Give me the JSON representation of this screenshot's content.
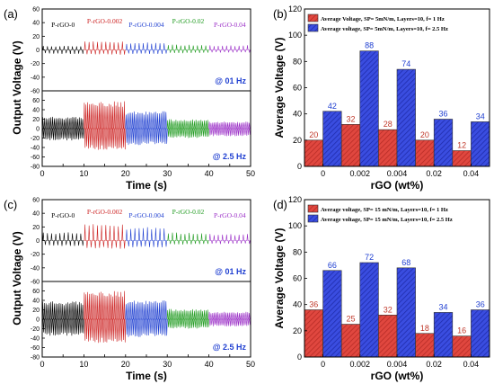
{
  "chart_data": [
    {
      "panel": "(a)",
      "type": "line",
      "xlabel": "Time (s)",
      "ylabel": "Output Voltage  (V)",
      "xlim": [
        0,
        50
      ],
      "xticks": [
        "0",
        "5",
        "10",
        "15",
        "20",
        "25",
        "30",
        "35",
        "40",
        "45",
        "50"
      ],
      "top": {
        "ylim": [
          -60,
          60
        ],
        "yticks": [
          "-60",
          "-40",
          "-20",
          "0",
          "20",
          "40",
          "60"
        ],
        "annotation": "@ 01 Hz",
        "series": [
          {
            "name": "P-rGO-0",
            "x": [
              0,
              10
            ],
            "amp_pos": 6,
            "amp_neg": -6,
            "color": "#000000"
          },
          {
            "name": "P-rGO-0.002",
            "x": [
              10,
              20
            ],
            "amp_pos": 13,
            "amp_neg": -7,
            "color": "#cc2222"
          },
          {
            "name": "P-rGO-0.004",
            "x": [
              20,
              30
            ],
            "amp_pos": 11,
            "amp_neg": -6,
            "color": "#1f3fd1"
          },
          {
            "name": "P-rGO-0.02",
            "x": [
              30,
              40
            ],
            "amp_pos": 8,
            "amp_neg": -5,
            "color": "#1e9a1e"
          },
          {
            "name": "P-rGO-0.04",
            "x": [
              40,
              50
            ],
            "amp_pos": 7,
            "amp_neg": -4,
            "color": "#9b2fc7"
          }
        ]
      },
      "bottom": {
        "ylim": [
          -80,
          80
        ],
        "yticks": [
          "-80",
          "-60",
          "-40",
          "-20",
          "0",
          "20",
          "40",
          "60"
        ],
        "annotation": "@ 2.5 Hz",
        "series": [
          {
            "x": [
              0,
              10
            ],
            "amp_pos": 25,
            "amp_neg": -25,
            "color": "#000000"
          },
          {
            "x": [
              10,
              20
            ],
            "amp_pos": 58,
            "amp_neg": -45,
            "color": "#cc2222"
          },
          {
            "x": [
              20,
              30
            ],
            "amp_pos": 37,
            "amp_neg": -35,
            "color": "#1f3fd1"
          },
          {
            "x": [
              30,
              40
            ],
            "amp_pos": 20,
            "amp_neg": -20,
            "color": "#1e9a1e"
          },
          {
            "x": [
              40,
              50
            ],
            "amp_pos": 15,
            "amp_neg": -16,
            "color": "#9b2fc7"
          }
        ]
      }
    },
    {
      "panel": "(b)",
      "type": "bar",
      "xlabel": "rGO (wt%)",
      "ylabel": "Average Voltage (V)",
      "ylim": [
        0,
        120
      ],
      "yticks": [
        "0",
        "20",
        "40",
        "60",
        "80",
        "100",
        "120"
      ],
      "categories": [
        "0",
        "0.002",
        "0.004",
        "0.02",
        "0.04"
      ],
      "series": [
        {
          "name": "Average Voltage, SP= 5mN/m, Layers=10, f= 1 Hz",
          "values": [
            20,
            32,
            28,
            20,
            12
          ],
          "color": "#d93a3a"
        },
        {
          "name": "Average voltage, SP= 5mN/m, Layers=10, f= 2.5 Hz",
          "values": [
            42,
            88,
            74,
            36,
            34
          ],
          "color": "#2f3fd6"
        }
      ]
    },
    {
      "panel": "(c)",
      "type": "line",
      "xlabel": "Time (s)",
      "ylabel": "Output Voltage  (V)",
      "xlim": [
        0,
        50
      ],
      "xticks": [
        "0",
        "5",
        "10",
        "15",
        "20",
        "25",
        "30",
        "35",
        "40",
        "45",
        "50"
      ],
      "top": {
        "ylim": [
          -60,
          60
        ],
        "yticks": [
          "-60",
          "-40",
          "-20",
          "0",
          "20",
          "40",
          "60"
        ],
        "annotation": "@ 01 Hz",
        "series": [
          {
            "name": "P-rGO-0",
            "x": [
              0,
              10
            ],
            "amp_pos": 12,
            "amp_neg": -8,
            "color": "#000000"
          },
          {
            "name": "P-rGO-0.002",
            "x": [
              10,
              20
            ],
            "amp_pos": 25,
            "amp_neg": -12,
            "color": "#cc2222"
          },
          {
            "name": "P-rGO-0.004",
            "x": [
              20,
              30
            ],
            "amp_pos": 20,
            "amp_neg": -10,
            "color": "#1f3fd1"
          },
          {
            "name": "P-rGO-0.02",
            "x": [
              30,
              40
            ],
            "amp_pos": 12,
            "amp_neg": -6,
            "color": "#1e9a1e"
          },
          {
            "name": "P-rGO-0.04",
            "x": [
              40,
              50
            ],
            "amp_pos": 10,
            "amp_neg": -5,
            "color": "#9b2fc7"
          }
        ]
      },
      "bottom": {
        "ylim": [
          -80,
          80
        ],
        "yticks": [
          "-80",
          "-60",
          "-40",
          "-20",
          "0",
          "20",
          "40",
          "60"
        ],
        "annotation": "@ 2.5 Hz",
        "series": [
          {
            "x": [
              0,
              10
            ],
            "amp_pos": 38,
            "amp_neg": -35,
            "color": "#000000"
          },
          {
            "x": [
              10,
              20
            ],
            "amp_pos": 60,
            "amp_neg": -50,
            "color": "#cc2222"
          },
          {
            "x": [
              20,
              30
            ],
            "amp_pos": 40,
            "amp_neg": -38,
            "color": "#1f3fd1"
          },
          {
            "x": [
              30,
              40
            ],
            "amp_pos": 22,
            "amp_neg": -20,
            "color": "#1e9a1e"
          },
          {
            "x": [
              40,
              50
            ],
            "amp_pos": 16,
            "amp_neg": -15,
            "color": "#9b2fc7"
          }
        ]
      }
    },
    {
      "panel": "(d)",
      "type": "bar",
      "xlabel": "rGO (wt%)",
      "ylabel": "Average Voltage (V)",
      "ylim": [
        0,
        120
      ],
      "yticks": [
        "0",
        "20",
        "40",
        "60",
        "80",
        "100",
        "120"
      ],
      "categories": [
        "0",
        "0.002",
        "0.004",
        "0.02",
        "0.04"
      ],
      "series": [
        {
          "name": "Average voltage, SP= 15 mN/m, Layers=10, f= 1 Hz",
          "values": [
            36,
            25,
            32,
            18,
            16
          ],
          "color": "#d93a3a"
        },
        {
          "name": "Average voltage, SP= 15 mN/m, Layers=10, f= 2.5 Hz",
          "values": [
            66,
            72,
            68,
            34,
            36
          ],
          "color": "#2f3fd6"
        }
      ]
    }
  ]
}
